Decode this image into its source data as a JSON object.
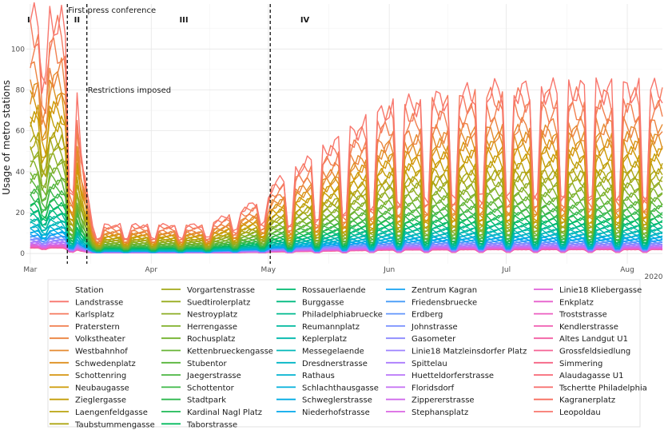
{
  "chart_data": {
    "type": "line",
    "ylabel": "Usage of metro stations",
    "xlabel": "",
    "ylim": [
      -5,
      122
    ],
    "yticks": [
      0,
      20,
      40,
      60,
      80,
      100
    ],
    "xlim_day": [
      -1,
      162
    ],
    "xticks": [
      {
        "label": "Mar",
        "day": 0
      },
      {
        "label": "Apr",
        "day": 31
      },
      {
        "label": "May",
        "day": 61
      },
      {
        "label": "Jun",
        "day": 92
      },
      {
        "label": "Jul",
        "day": 122
      },
      {
        "label": "Aug",
        "day": 153
      }
    ],
    "year_label": "2020",
    "events": [
      {
        "label": "First press conference",
        "day": 9.5
      },
      {
        "label": "Restrictions imposed",
        "day": 14.5
      },
      {
        "label": "",
        "day": 61.5
      }
    ],
    "phases": [
      {
        "label": "I",
        "day": -1
      },
      {
        "label": "II",
        "day": 11
      },
      {
        "label": "III",
        "day": 38
      },
      {
        "label": "IV",
        "day": 69
      }
    ],
    "series_shape": "daily usage, Mar 1 - Aug 10 2020; weekly cycle with weekday plateau and weekend dip; pre-lockdown level = peak, lockdown floor ~10% of peak, recovery to ~75% by June",
    "legend": {
      "title": "Station",
      "columns": [
        [
          "Landstrasse",
          "Karlsplatz",
          "Praterstern",
          "Volkstheater",
          "Westbahnhof",
          "Schwedenplatz",
          "Schottenring",
          "Neubaugasse",
          "Zieglergasse",
          "Laengenfeldgasse",
          "Taubstummengasse"
        ],
        [
          "Vorgartenstrasse",
          "Suedtirolerplatz",
          "Nestroyplatz",
          "Herrengasse",
          "Rochusplatz",
          "Kettenbrueckengasse",
          "Stubentor",
          "Jaegerstrasse",
          "Schottentor",
          "Stadtpark",
          "Kardinal Nagl Platz",
          "Taborstrasse"
        ],
        [
          "Rossauerlaende",
          "Burggasse",
          "Philadelphiabruecke",
          "Reumannplatz",
          "Keplerplatz",
          "Messegelaende",
          "Dresdnerstrasse",
          "Rathaus",
          "Schlachthausgasse",
          "Schweglerstrasse",
          "Niederhofstrasse"
        ],
        [
          "Zentrum Kagran",
          "Friedensbruecke",
          "Erdberg",
          "Johnstrasse",
          "Gasometer",
          "Linie18 Matzleinsdorfer Platz",
          "Spittelau",
          "Huetteldorferstrasse",
          "Floridsdorf",
          "Zippererstrasse",
          "Stephansplatz"
        ],
        [
          "Linie18 Kliebergasse",
          "Enkplatz",
          "Troststrasse",
          "Kendlerstrasse",
          "Altes Landgut U1",
          "Grossfeldsiedlung",
          "Simmering",
          "Alaudagasse U1",
          "Tschertte Philadelphia",
          "Kagranerplatz",
          "Leopoldau"
        ]
      ],
      "colors": [
        [
          "#f8766d",
          "#f57a5f",
          "#f17f4f",
          "#ec8440",
          "#e58a30",
          "#de9020",
          "#d59510",
          "#cd9a04",
          "#c39e08",
          "#b9a20e",
          "#aea614"
        ],
        [
          "#a3a91a",
          "#98ac1f",
          "#8cae24",
          "#80b12a",
          "#73b22f",
          "#66b435",
          "#58b53b",
          "#4ab641",
          "#3cb847",
          "#2eb84e",
          "#1cb955",
          "#03ba5e"
        ],
        [
          "#00ba70",
          "#00ba80",
          "#00ba8f",
          "#00b99e",
          "#00b8ac",
          "#00b7b9",
          "#00b5c5",
          "#00b2d0",
          "#00afdb",
          "#00abe4",
          "#00a7ec"
        ],
        [
          "#16a2f3",
          "#479cf8",
          "#6296fc",
          "#7990ff",
          "#8b89ff",
          "#9c82ff",
          "#ab7bfd",
          "#b874f9",
          "#c46ef3",
          "#cf69ec",
          "#d965e3"
        ],
        [
          "#e062d9",
          "#e760cd",
          "#ec5fc0",
          "#f05fb2",
          "#f360a3",
          "#f56294",
          "#f66484",
          "#f76775",
          "#f76a68",
          "#f86e5e",
          "#f8766d"
        ]
      ]
    }
  }
}
